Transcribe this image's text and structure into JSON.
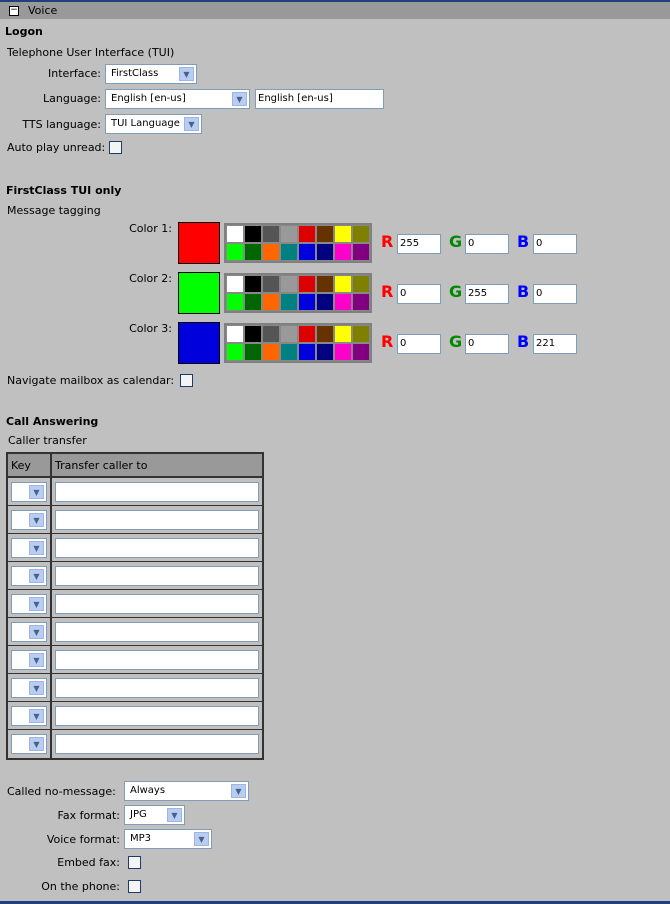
{
  "section": {
    "title": "Voice",
    "toggle_icon": "collapse-minus-icon"
  },
  "logon": {
    "heading": "Logon",
    "subheading": "Telephone User Interface (TUI)",
    "interface_label": "Interface:",
    "interface_value": "FirstClass",
    "language_label": "Language:",
    "language_value": "English [en-us]",
    "language_text": "English [en-us]",
    "tts_label": "TTS language:",
    "tts_value": "TUI Language",
    "autoplay_label": "Auto play unread:",
    "autoplay_checked": false
  },
  "tui": {
    "heading": "FirstClass TUI only",
    "subheading": "Message tagging",
    "palette": [
      "#ffffff",
      "#000000",
      "#555555",
      "#999999",
      "#dd0000",
      "#663300",
      "#ffff00",
      "#808000",
      "#00ff00",
      "#006600",
      "#ff6600",
      "#008080",
      "#0000dd",
      "#000080",
      "#ff00cc",
      "#800080"
    ],
    "colors": [
      {
        "label": "Color 1:",
        "swatch": "#ff0000",
        "r": "255",
        "g": "0",
        "b": "0"
      },
      {
        "label": "Color 2:",
        "swatch": "#00ff00",
        "r": "0",
        "g": "255",
        "b": "0"
      },
      {
        "label": "Color 3:",
        "swatch": "#0000dd",
        "r": "0",
        "g": "0",
        "b": "221"
      }
    ],
    "r_label": "R",
    "g_label": "G",
    "b_label": "B",
    "navigate_label": "Navigate mailbox as calendar:",
    "navigate_checked": false
  },
  "call": {
    "heading": "Call Answering",
    "subheading": "Caller transfer",
    "col_key": "Key",
    "col_transfer": "Transfer caller to",
    "row_count": 10,
    "no_message_label": "Called no-message:",
    "no_message_value": "Always",
    "fax_label": "Fax format:",
    "fax_value": "JPG",
    "voice_label": "Voice format:",
    "voice_value": "MP3",
    "embed_label": "Embed fax:",
    "embed_checked": false,
    "phone_label": "On the phone:",
    "phone_checked": false
  }
}
